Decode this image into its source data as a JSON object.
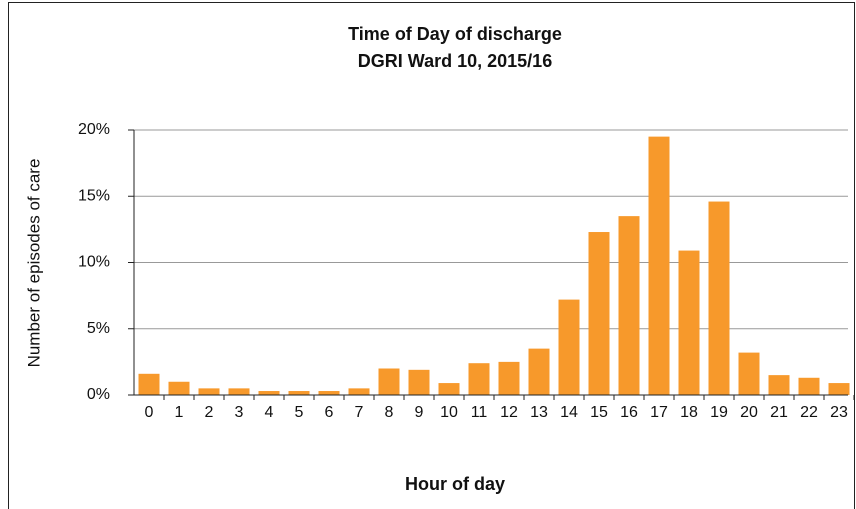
{
  "chart_data": {
    "type": "bar",
    "title": "Time of Day of discharge",
    "subtitle": "DGRI Ward 10, 2015/16",
    "x_label": "Hour of day",
    "y_label": "Number of episodes of care",
    "categories": [
      "0",
      "1",
      "2",
      "3",
      "4",
      "5",
      "6",
      "7",
      "8",
      "9",
      "10",
      "11",
      "12",
      "13",
      "14",
      "15",
      "16",
      "17",
      "18",
      "19",
      "20",
      "21",
      "22",
      "23"
    ],
    "values": [
      1.6,
      1.0,
      0.5,
      0.5,
      0.3,
      0.3,
      0.3,
      0.5,
      2.0,
      1.9,
      0.9,
      2.4,
      2.5,
      3.5,
      7.2,
      12.3,
      13.5,
      19.5,
      10.9,
      14.6,
      3.2,
      1.5,
      1.3,
      0.9
    ],
    "color": "#f7992b",
    "ylim": [
      0,
      20
    ],
    "yticks": [
      {
        "value": 0,
        "label": "0%"
      },
      {
        "value": 5,
        "label": "5%"
      },
      {
        "value": 10,
        "label": "10%"
      },
      {
        "value": 15,
        "label": "15%"
      },
      {
        "value": 20,
        "label": "20%"
      }
    ],
    "grid": true
  }
}
